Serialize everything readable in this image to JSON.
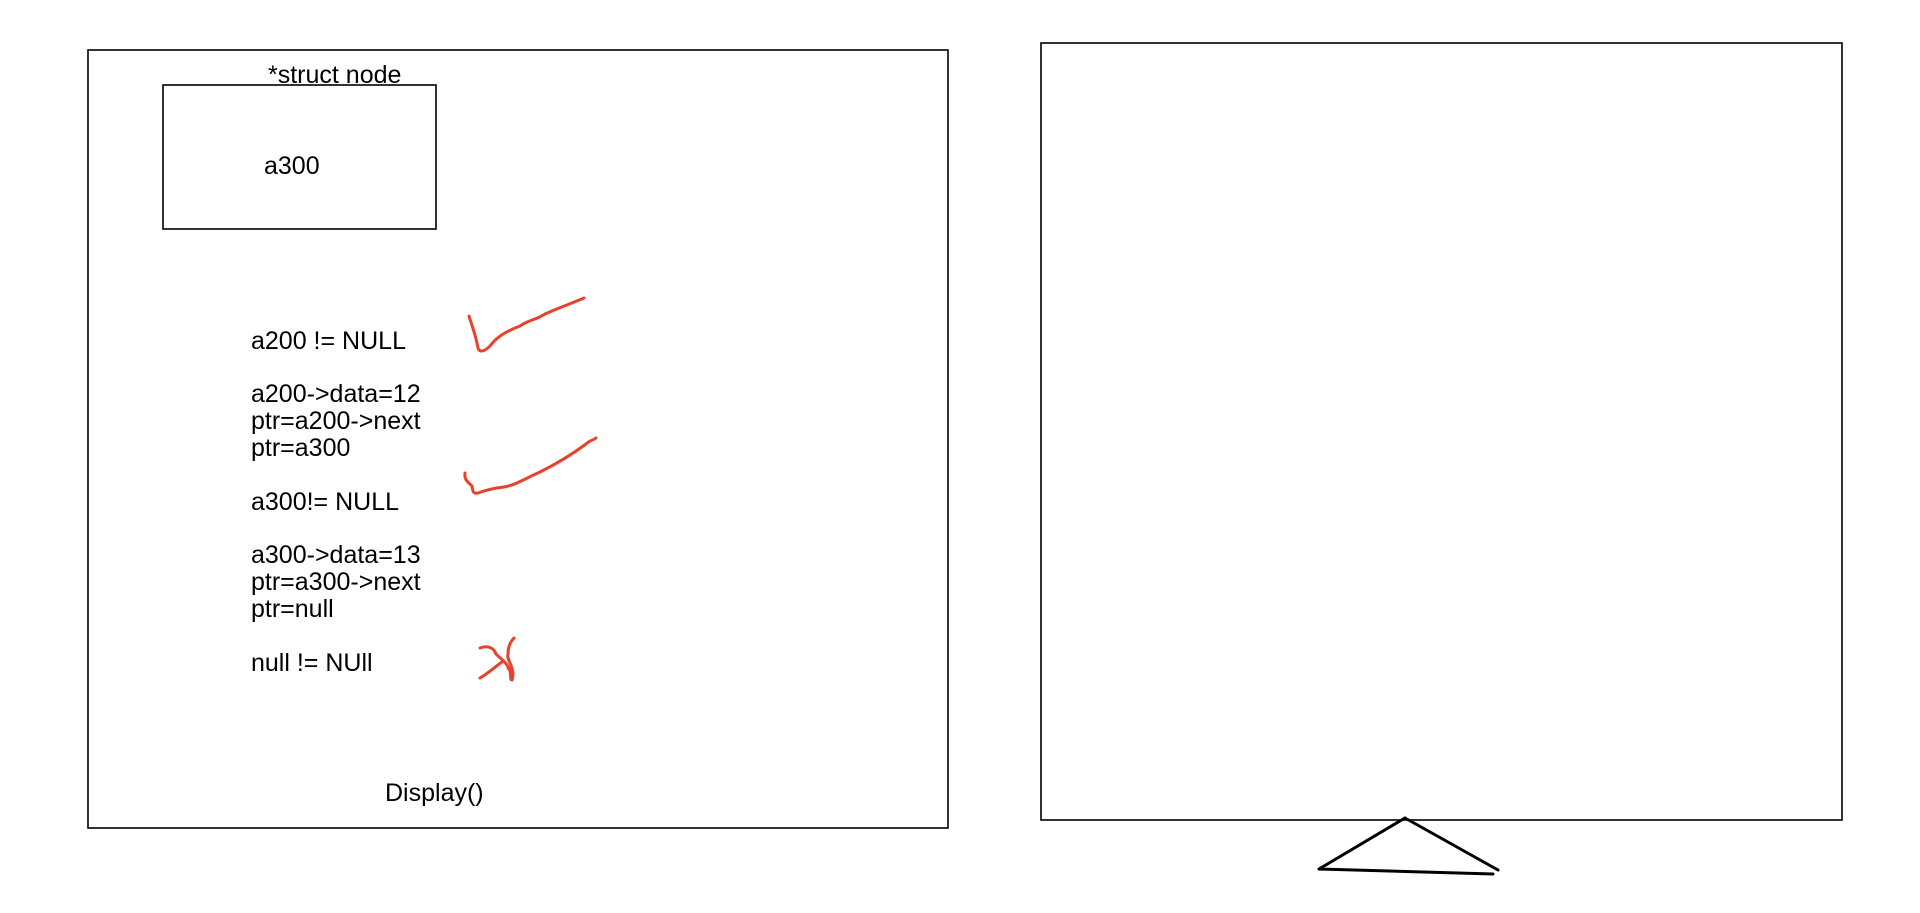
{
  "left_board": {
    "struct_label": "*struct node",
    "node_box_value": "a300",
    "trace_lines": [
      "a200 != NULL",
      "a200->data=12",
      "ptr=a200->next",
      "ptr=a300",
      "a300!= NULL",
      "a300->data=13",
      "ptr=a300->next",
      "ptr=null",
      "null != NUll"
    ],
    "function_label": "Display()"
  },
  "annotations": {
    "check_marks": [
      "check-mark-icon",
      "check-mark-icon"
    ],
    "cross_mark": "cross-mark-icon"
  },
  "right_board": {
    "stand": "triangle-stand-icon"
  },
  "colors": {
    "ink_red": "#e8412c",
    "ink_black": "#000000",
    "background": "#ffffff"
  }
}
